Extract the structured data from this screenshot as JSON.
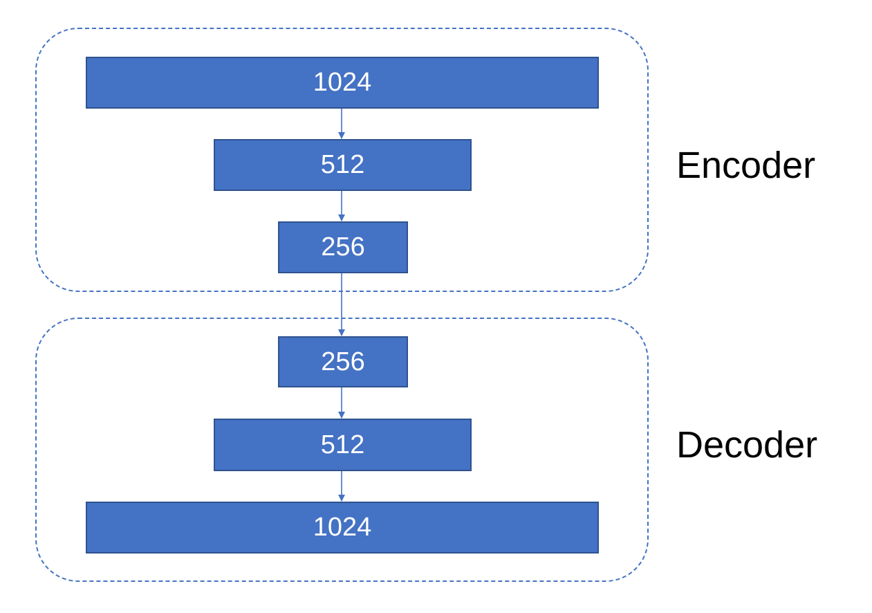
{
  "colors": {
    "box_fill": "#4472c4",
    "box_border": "#2f528f",
    "group_border": "#4472c4",
    "arrow": "#4472c4"
  },
  "encoder": {
    "label": "Encoder",
    "layers": [
      "1024",
      "512",
      "256"
    ]
  },
  "decoder": {
    "label": "Decoder",
    "layers": [
      "256",
      "512",
      "1024"
    ]
  }
}
